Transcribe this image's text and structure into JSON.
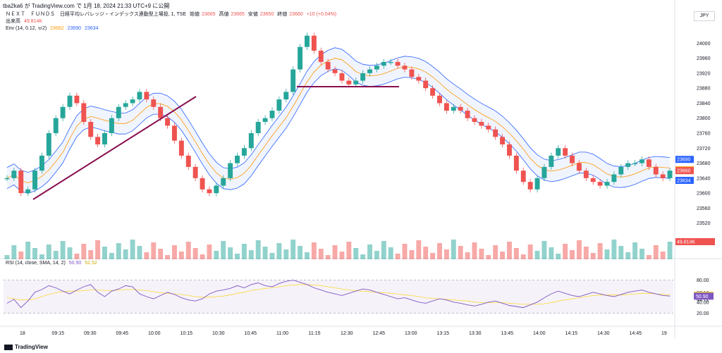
{
  "publisher_line": "tba2ka6 が TradingView.com で 1月 18, 2024 21:33 UTC+9 に公開",
  "legend": {
    "symbol": "ＮＥＸＴ　ＦＵＮＤＳ　日経平均レバレッジ・インデックス連動型上場投, 1, TSE",
    "open_label": "始値",
    "open": "23665",
    "high_label": "高値",
    "high": "23665",
    "low_label": "安値",
    "low": "23650",
    "close_label": "終値",
    "close": "23660",
    "change": "+10 (+0.04%)",
    "volume_label": "出来高",
    "volume": "49.814K",
    "env_label": "Env (14, 0.12, ㅂ2)",
    "env_basis": "23662",
    "env_upper": "23690",
    "env_lower": "23634"
  },
  "currency": "JPY",
  "brand": "TradingView",
  "colors": {
    "up": "#26a69a",
    "down": "#ef5350",
    "env_basis": "#ff9800",
    "env_band": "#2962ff",
    "rsi": "#7e57c2",
    "rsi_ma": "#fdd835",
    "trendline": "#880e4f"
  },
  "chart_data": {
    "type": "candlestick",
    "interval": "1",
    "x_ticks": [
      "18",
      "09:15",
      "09:30",
      "09:45",
      "10:00",
      "10:15",
      "10:30",
      "10:45",
      "11:00",
      "11:15",
      "12:30",
      "12:45",
      "13:00",
      "13:15",
      "13:30",
      "13:45",
      "14:00",
      "14:15",
      "14:30",
      "14:45",
      "19"
    ],
    "price_ticks": [
      "24000",
      "23960",
      "23920",
      "23880",
      "23840",
      "23800",
      "23760",
      "23720",
      "23680",
      "23640",
      "23600",
      "23560",
      "23520"
    ],
    "price_range": [
      23495,
      24040
    ],
    "price_tags": [
      {
        "value": 23690,
        "label": "23690",
        "color": "#2962ff"
      },
      {
        "value": 23662,
        "label": "23662",
        "color": "#ff9800"
      },
      {
        "value": 23660,
        "label": "23660",
        "color": "#ef5350"
      },
      {
        "value": 23634,
        "label": "23634",
        "color": "#2962ff"
      }
    ],
    "close_series": [
      23640,
      23660,
      23600,
      23610,
      23660,
      23700,
      23760,
      23800,
      23830,
      23860,
      23840,
      23790,
      23750,
      23730,
      23760,
      23800,
      23830,
      23840,
      23850,
      23870,
      23850,
      23830,
      23800,
      23780,
      23740,
      23700,
      23670,
      23640,
      23610,
      23600,
      23620,
      23640,
      23680,
      23700,
      23720,
      23760,
      23790,
      23800,
      23820,
      23850,
      23870,
      23930,
      23990,
      24020,
      23980,
      23950,
      23930,
      23920,
      23900,
      23890,
      23900,
      23920,
      23930,
      23940,
      23950,
      23950,
      23940,
      23930,
      23910,
      23900,
      23880,
      23860,
      23840,
      23820,
      23830,
      23820,
      23800,
      23790,
      23780,
      23770,
      23750,
      23730,
      23700,
      23660,
      23630,
      23610,
      23640,
      23670,
      23700,
      23720,
      23700,
      23680,
      23660,
      23640,
      23630,
      23620,
      23630,
      23650,
      23670,
      23680,
      23680,
      23690,
      23670,
      23650,
      23640,
      23660
    ],
    "volume_label": "49.814K",
    "rsi": {
      "label": "RSI (14, close, SMA, 14, 2)",
      "value": "50.90",
      "ma": "52.52",
      "ticks": [
        "80.00",
        "57.18",
        "44.72",
        "40.00",
        "20.00"
      ],
      "series": [
        38,
        45,
        30,
        42,
        58,
        63,
        70,
        66,
        60,
        55,
        62,
        68,
        72,
        58,
        50,
        60,
        64,
        70,
        68,
        55,
        50,
        46,
        52,
        58,
        54,
        48,
        44,
        42,
        46,
        55,
        60,
        62,
        65,
        70,
        66,
        72,
        75,
        70,
        68,
        74,
        78,
        80,
        76,
        72,
        66,
        62,
        58,
        55,
        52,
        56,
        60,
        64,
        62,
        58,
        54,
        50,
        46,
        48,
        44,
        40,
        38,
        42,
        46,
        44,
        40,
        38,
        35,
        33,
        36,
        40,
        42,
        38,
        34,
        32,
        30,
        35,
        40,
        48,
        55,
        60,
        56,
        52,
        50,
        54,
        58,
        55,
        52,
        50,
        54,
        58,
        60,
        62,
        58,
        55,
        52,
        51
      ],
      "ma_series": [
        48,
        46,
        44,
        44,
        46,
        50,
        54,
        57,
        59,
        60,
        60,
        61,
        62,
        62,
        61,
        61,
        62,
        63,
        63,
        62,
        61,
        59,
        57,
        56,
        55,
        54,
        52,
        50,
        49,
        49,
        50,
        51,
        53,
        56,
        58,
        61,
        63,
        65,
        66,
        68,
        70,
        71,
        72,
        72,
        71,
        70,
        68,
        66,
        64,
        62,
        61,
        60,
        59,
        58,
        57,
        56,
        55,
        53,
        52,
        50,
        48,
        47,
        46,
        45,
        44,
        43,
        42,
        40,
        39,
        39,
        39,
        39,
        38,
        37,
        36,
        36,
        36,
        37,
        39,
        42,
        44,
        46,
        48,
        50,
        52,
        53,
        53,
        53,
        53,
        54,
        55,
        56,
        56,
        55,
        54,
        53
      ]
    }
  }
}
